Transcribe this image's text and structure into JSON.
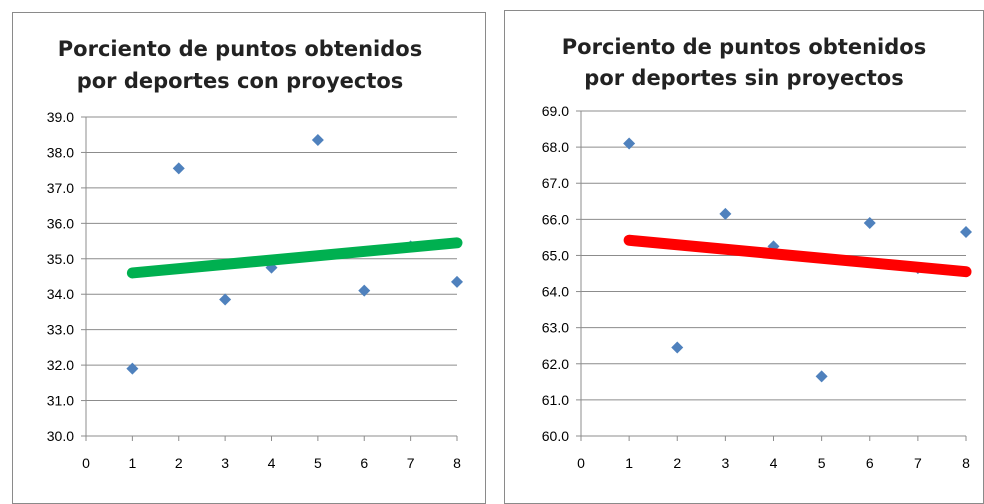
{
  "chart_data": [
    {
      "type": "scatter",
      "title": "Porciento de puntos obtenidos\npor deportes con proyectos",
      "title_lines": [
        "Porciento de puntos obtenidos",
        "por deportes con proyectos"
      ],
      "x_ticks": [
        "0",
        "1",
        "2",
        "3",
        "4",
        "5",
        "6",
        "7",
        "8"
      ],
      "y_ticks": [
        "30.0",
        "31.0",
        "32.0",
        "33.0",
        "34.0",
        "35.0",
        "36.0",
        "37.0",
        "38.0",
        "39.0"
      ],
      "xlim": [
        0,
        8
      ],
      "ylim": [
        30,
        39
      ],
      "grid": "horizontal",
      "points": [
        {
          "x": 1,
          "y": 31.9
        },
        {
          "x": 2,
          "y": 37.55
        },
        {
          "x": 3,
          "y": 33.85
        },
        {
          "x": 4,
          "y": 34.75
        },
        {
          "x": 5,
          "y": 38.35
        },
        {
          "x": 6,
          "y": 34.1
        },
        {
          "x": 7,
          "y": 35.35
        },
        {
          "x": 8,
          "y": 34.35
        }
      ],
      "trendline": {
        "x": [
          1,
          8
        ],
        "y": [
          34.6,
          35.45
        ],
        "color": "#00b050"
      },
      "marker_color": "#4f81bd"
    },
    {
      "type": "scatter",
      "title": "Porciento de puntos obtenidos\npor deportes sin proyectos",
      "title_lines": [
        "Porciento de puntos obtenidos",
        "por deportes sin proyectos"
      ],
      "x_ticks": [
        "0",
        "1",
        "2",
        "3",
        "4",
        "5",
        "6",
        "7",
        "8"
      ],
      "y_ticks": [
        "60.0",
        "61.0",
        "62.0",
        "63.0",
        "64.0",
        "65.0",
        "66.0",
        "67.0",
        "68.0",
        "69.0"
      ],
      "xlim": [
        0,
        8
      ],
      "ylim": [
        60,
        69
      ],
      "grid": "horizontal",
      "points": [
        {
          "x": 1,
          "y": 68.1
        },
        {
          "x": 2,
          "y": 62.45
        },
        {
          "x": 3,
          "y": 66.15
        },
        {
          "x": 4,
          "y": 65.25
        },
        {
          "x": 5,
          "y": 61.65
        },
        {
          "x": 6,
          "y": 65.9
        },
        {
          "x": 7,
          "y": 64.65
        },
        {
          "x": 8,
          "y": 65.65
        }
      ],
      "trendline": {
        "x": [
          1,
          8
        ],
        "y": [
          65.42,
          64.55
        ],
        "color": "#ff0000"
      },
      "marker_color": "#4f81bd"
    }
  ]
}
